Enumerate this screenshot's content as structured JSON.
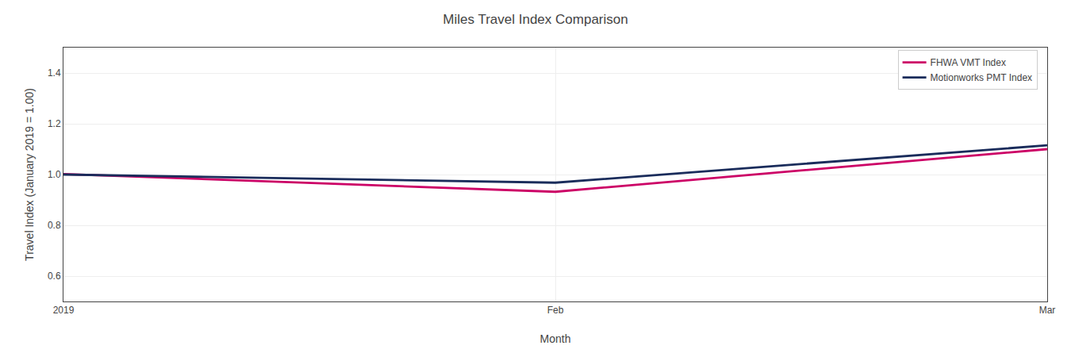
{
  "chart_data": {
    "type": "line",
    "title": "Miles Travel Index Comparison",
    "x_label": "Month",
    "y_label": "Travel Index (January 2019 = 1.00)",
    "categories": [
      "2019",
      "Feb",
      "Mar"
    ],
    "series": [
      {
        "name": "FHWA VMT Index",
        "color": "#cc0066",
        "values": [
          1.002,
          0.932,
          1.1
        ]
      },
      {
        "name": "Motionworks PMT Index",
        "color": "#1a2c5b",
        "values": [
          1.0,
          0.968,
          1.115
        ]
      }
    ],
    "ylim": [
      0.5,
      1.5
    ],
    "yticks": [
      0.6,
      0.8,
      {
        "value": 1.0,
        "label": "1.0"
      },
      1.2,
      1.4
    ],
    "grid": true,
    "legend": "upper right"
  }
}
